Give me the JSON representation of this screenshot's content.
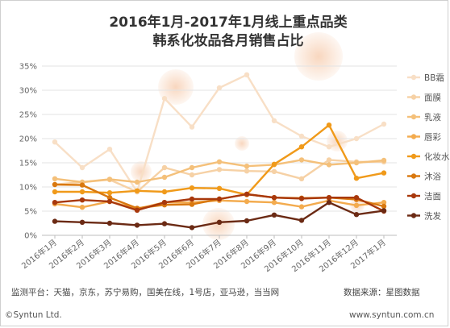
{
  "footer": {
    "source_platforms": "监测平台：天猫，京东，苏宁易购，国美在线，1号店，亚马逊，当当网",
    "data_source": "数据来源：星图数据",
    "copyright": "©Syntun Ltd.",
    "website": "www.syntun.com.cn"
  },
  "chart_data": {
    "type": "line",
    "title": [
      "2016年1月-2017年1月线上重点品类",
      "韩系化妆品各月销售占比"
    ],
    "xlabel": "",
    "ylabel": "",
    "ylim": [
      0,
      35
    ],
    "yticks": [
      "0%",
      "5%",
      "10%",
      "15%",
      "20%",
      "25%",
      "30%",
      "35%"
    ],
    "y_unit": "%",
    "grid": true,
    "legend_position": "right",
    "categories": [
      "2016年1月",
      "2016年2月",
      "2016年3月",
      "2016年4月",
      "2016年5月",
      "2016年6月",
      "2016年7月",
      "2016年8月",
      "2016年9月",
      "2016年10月",
      "2016年11月",
      "2016年12月",
      "2017年1月"
    ],
    "series": [
      {
        "name": "BB霜",
        "color": "#f8dfc6",
        "values": [
          19.3,
          14.0,
          17.8,
          9.0,
          28.3,
          22.4,
          30.5,
          33.2,
          23.7,
          20.5,
          18.3,
          20.0,
          23.0
        ]
      },
      {
        "name": "面膜",
        "color": "#f6d1a5",
        "values": [
          10.5,
          11.0,
          11.5,
          9.0,
          14.0,
          12.5,
          13.6,
          13.3,
          13.2,
          11.7,
          15.6,
          15.2,
          15.2
        ]
      },
      {
        "name": "乳液",
        "color": "#f4c07a",
        "values": [
          11.7,
          11.0,
          11.6,
          11.0,
          12.0,
          14.0,
          15.2,
          14.3,
          14.6,
          15.6,
          14.6,
          15.0,
          15.5
        ]
      },
      {
        "name": "唇彩",
        "color": "#f3ab4e",
        "values": [
          6.5,
          5.8,
          7.0,
          5.5,
          6.8,
          6.8,
          7.2,
          7.0,
          6.8,
          5.9,
          7.2,
          6.2,
          6.8
        ]
      },
      {
        "name": "化妆水",
        "color": "#f09a1a",
        "values": [
          9.0,
          9.0,
          8.8,
          9.2,
          9.0,
          9.8,
          9.7,
          8.4,
          14.7,
          18.3,
          22.8,
          11.8,
          12.9
        ]
      },
      {
        "name": "沐浴",
        "color": "#d9780f",
        "values": [
          10.5,
          10.4,
          7.8,
          5.6,
          6.3,
          6.4,
          7.5,
          8.5,
          7.8,
          7.7,
          7.8,
          7.4,
          6.0
        ]
      },
      {
        "name": "洁面",
        "color": "#a8380c",
        "values": [
          6.8,
          7.3,
          7.0,
          5.2,
          6.8,
          7.5,
          7.5,
          8.5,
          7.8,
          7.6,
          7.8,
          7.8,
          5.0
        ]
      },
      {
        "name": "洗发",
        "color": "#6b2a14",
        "values": [
          2.9,
          2.7,
          2.5,
          2.1,
          2.4,
          1.6,
          2.7,
          3.0,
          4.2,
          3.1,
          6.8,
          4.3,
          5.1
        ]
      }
    ]
  }
}
